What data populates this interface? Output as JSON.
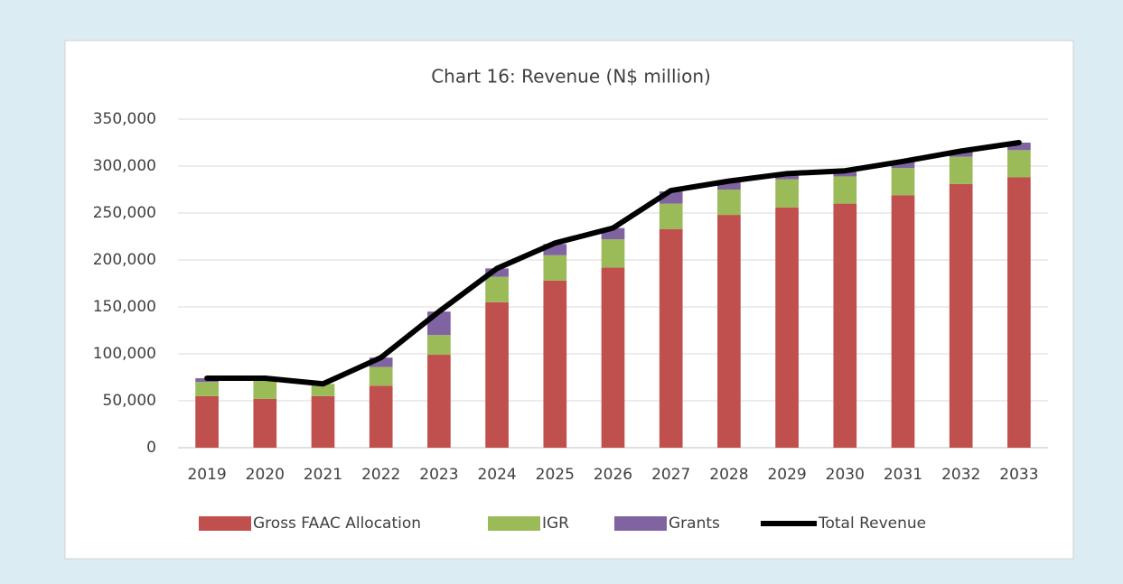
{
  "chart_data": {
    "type": "bar",
    "stacked": true,
    "title": "Chart 16: Revenue (N$ million)",
    "categories": [
      "2019",
      "2020",
      "2021",
      "2022",
      "2023",
      "2024",
      "2025",
      "2026",
      "2027",
      "2028",
      "2029",
      "2030",
      "2031",
      "2032",
      "2033"
    ],
    "series": [
      {
        "name": "Gross FAAC Allocation",
        "color": "#c0504d",
        "type": "bar",
        "values": [
          55000,
          52000,
          55000,
          66000,
          99000,
          155000,
          178000,
          192000,
          233000,
          248000,
          256000,
          260000,
          269000,
          281000,
          288000
        ]
      },
      {
        "name": "IGR",
        "color": "#9bbb59",
        "type": "bar",
        "values": [
          15000,
          22000,
          13000,
          20000,
          21000,
          27000,
          27000,
          30000,
          27000,
          27000,
          30000,
          29000,
          29000,
          29000,
          29000
        ]
      },
      {
        "name": "Grants",
        "color": "#8064a2",
        "type": "bar",
        "values": [
          4000,
          0,
          0,
          10000,
          25000,
          9000,
          12000,
          12000,
          13000,
          9000,
          6000,
          6000,
          7000,
          5000,
          8000
        ]
      },
      {
        "name": "Total Revenue",
        "color": "#000000",
        "type": "line",
        "values": [
          74000,
          74000,
          68000,
          96000,
          145000,
          191000,
          218000,
          234000,
          274000,
          284000,
          292000,
          295000,
          305000,
          316000,
          325000
        ]
      }
    ],
    "ylim": [
      0,
      350000
    ],
    "yticks": [
      0,
      {
        "value": 50000,
        "label": "50,000"
      },
      {
        "value": 100000,
        "label": "100,000"
      },
      {
        "value": 150000,
        "label": "150,000"
      },
      {
        "value": 200000,
        "label": "200,000"
      },
      {
        "value": 250000,
        "label": "250,000"
      },
      {
        "value": 300000,
        "label": "300,000"
      },
      {
        "value": 350000,
        "label": "350,000"
      }
    ],
    "grid": true,
    "legend": "bottom"
  }
}
